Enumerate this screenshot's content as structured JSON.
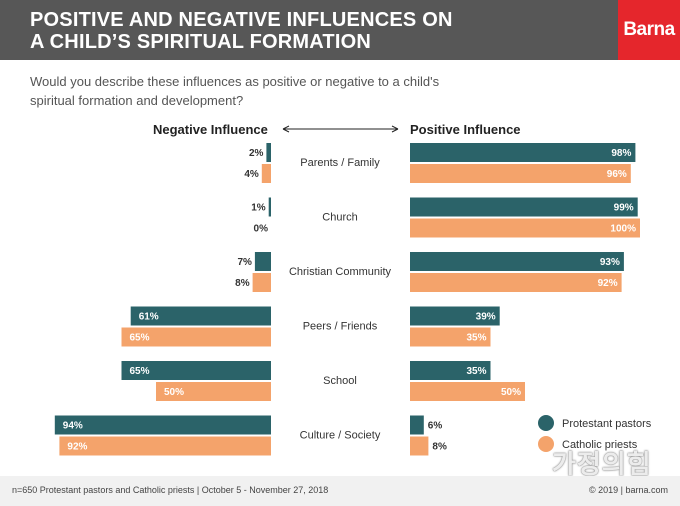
{
  "header": {
    "title": "POSITIVE AND NEGATIVE INFLUENCES ON\nA CHILD’S SPIRITUAL FORMATION",
    "logo": "Barna"
  },
  "question": "Would you describe these influences as positive or negative to a child's spiritual formation and development?",
  "footer": {
    "note": "n=650 Protestant pastors and Catholic priests  | October 5 - November 27, 2018",
    "copyright": "© 2019 | barna.com"
  },
  "watermark": "가정의힘",
  "colors": {
    "protestant": "#2b6369",
    "catholic": "#f4a36b",
    "header": "#575757",
    "brand": "#e5262c"
  },
  "chart_data": {
    "type": "bar",
    "orientation": "horizontal-diverging",
    "left_label": "Negative Influence",
    "right_label": "Positive Influence",
    "categories": [
      "Parents / Family",
      "Church",
      "Christian Community",
      "Peers / Friends",
      "School",
      "Culture / Society"
    ],
    "series": [
      {
        "name": "Protestant pastors",
        "negative": [
          2,
          1,
          7,
          61,
          65,
          94
        ],
        "positive": [
          98,
          99,
          93,
          39,
          35,
          6
        ]
      },
      {
        "name": "Catholic priests",
        "negative": [
          4,
          0,
          8,
          65,
          50,
          92
        ],
        "positive": [
          96,
          100,
          92,
          35,
          50,
          8
        ]
      }
    ],
    "unit": "%",
    "xlim": [
      0,
      100
    ],
    "legend_position": "bottom-right"
  }
}
